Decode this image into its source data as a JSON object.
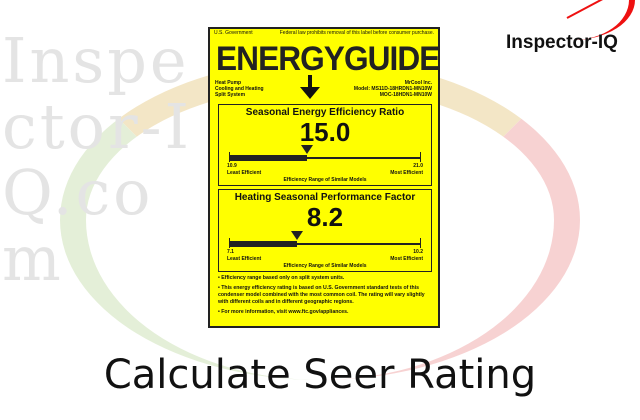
{
  "watermark": "Inspector-IQ.com",
  "logo": {
    "text": "Inspector-IQ"
  },
  "label": {
    "gov": "U.S. Government",
    "law": "Federal law prohibits removal of this label before consumer purchase.",
    "title": "ENERGYGUIDE",
    "type": [
      "Heat Pump",
      "Cooling and Heating",
      "Split System"
    ],
    "maker": "MrCool Inc.",
    "model": "Model: MS11D-18HRDN1-MN10W",
    "model2": "MOC-18HDN1-MN10W",
    "seer": {
      "title": "Seasonal Energy Efficiency Ratio",
      "value": "15.0",
      "min": "10.9",
      "max": "21.0",
      "min_label": "Least Efficient",
      "max_label": "Most Efficient",
      "range_label": "Efficiency Range of Similar Models",
      "fraction": 0.406
    },
    "hspf": {
      "title": "Heating Seasonal Performance Factor",
      "value": "8.2",
      "min": "7.1",
      "max": "10.2",
      "min_label": "Least Efficient",
      "max_label": "Most Efficient",
      "range_label": "Efficiency Range of Similar Models",
      "fraction": 0.355
    },
    "notes": [
      "• Efficiency range based only on split system units.",
      "• This energy efficiency rating is based on U.S. Government standard tests of this condenser model combined with the most common coil. The rating will vary slightly with different coils and in different geographic regions.",
      "• For more information, visit www.ftc.gov/appliances."
    ]
  },
  "caption": "Calculate Seer Rating"
}
